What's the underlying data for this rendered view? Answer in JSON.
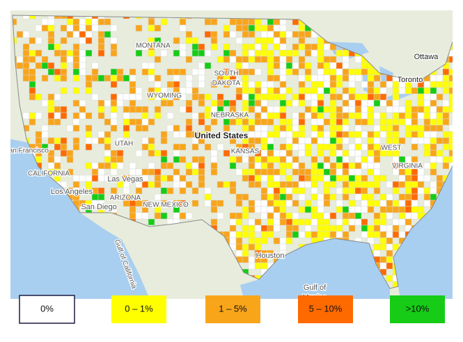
{
  "map": {
    "labels": [
      "MONTANA",
      "Ottawa",
      "Toronto",
      "SOUTH",
      "DAKOTA",
      "WYOMING",
      "NEBRASKA",
      "United States",
      "KANSAS",
      "UTAH",
      "San Francisco",
      "CALIFORNIA",
      "Las Vegas",
      "Los Angeles",
      "San Diego",
      "ARIZONA",
      "NEW MEXICO",
      "WEST",
      "VIRGINIA",
      "Houston",
      "Gulf of California",
      "Gulf of",
      "Mexico"
    ]
  },
  "legend": {
    "items": [
      {
        "label": "0%",
        "color": "#ffffff"
      },
      {
        "label": "0 – 1%",
        "color": "#ffff00"
      },
      {
        "label": "1 – 5%",
        "color": "#f9a51a"
      },
      {
        "label": "5 – 10%",
        "color": "#ff6a00"
      },
      {
        "label": ">10%",
        "color": "#16cc16"
      }
    ]
  }
}
